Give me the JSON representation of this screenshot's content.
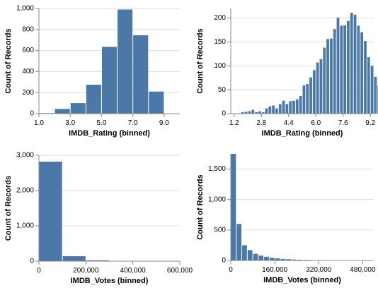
{
  "chart_data": [
    {
      "type": "bar",
      "xlabel": "IMDB_Rating (binned)",
      "ylabel": "Count of Records",
      "x_domain": [
        1,
        10
      ],
      "x_ticks": [
        1,
        3,
        5,
        7,
        9
      ],
      "x_tick_labels": [
        "1.0",
        "3.0",
        "5.0",
        "7.0",
        "9.0"
      ],
      "ylim": [
        0,
        1000
      ],
      "y_ticks": [
        0,
        200,
        400,
        600,
        800,
        1000
      ],
      "y_tick_labels": [
        "0",
        "200",
        "400",
        "600",
        "800",
        "1,000"
      ],
      "bin_starts": [
        1,
        2,
        3,
        4,
        5,
        6,
        7,
        8
      ],
      "bin_width": 1,
      "values": [
        5,
        45,
        100,
        275,
        635,
        990,
        745,
        210
      ],
      "color": "#4c78a8"
    },
    {
      "type": "bar",
      "xlabel": "IMDB_Rating (binned)",
      "ylabel": "Count of Records",
      "x_domain": [
        1,
        9.4
      ],
      "x_ticks": [
        1.2,
        2.8,
        4.4,
        6.0,
        7.6,
        9.2
      ],
      "x_tick_labels": [
        "1.2",
        "2.8",
        "4.4",
        "6.0",
        "7.6",
        "9.2"
      ],
      "ylim": [
        0,
        220
      ],
      "y_ticks": [
        0,
        50,
        100,
        150,
        200
      ],
      "y_tick_labels": [
        "0",
        "50",
        "100",
        "150",
        "200"
      ],
      "bin_start": 1.4,
      "bin_width": 0.2,
      "values": [
        1,
        3,
        4,
        5,
        8,
        3,
        5,
        3,
        11,
        15,
        17,
        11,
        20,
        27,
        20,
        26,
        27,
        30,
        37,
        59,
        62,
        76,
        91,
        107,
        114,
        138,
        156,
        157,
        177,
        201,
        184,
        185,
        194,
        211,
        207,
        184,
        170,
        152,
        118,
        100,
        77,
        59,
        34,
        37,
        20,
        14,
        5,
        3
      ],
      "color": "#4c78a8"
    },
    {
      "type": "bar",
      "xlabel": "IMDB_Votes (binned)",
      "ylabel": "Count of Records",
      "x_domain": [
        0,
        600000
      ],
      "x_ticks": [
        0,
        200000,
        400000,
        600000
      ],
      "x_tick_labels": [
        "0",
        "200,000",
        "400,000",
        "600,000"
      ],
      "ylim": [
        0,
        3000
      ],
      "y_ticks": [
        0,
        1000,
        2000,
        3000
      ],
      "y_tick_labels": [
        "0",
        "1,000",
        "2,000",
        "3,000"
      ],
      "bin_start": 0,
      "bin_width": 100000,
      "values": [
        2820,
        140,
        25,
        6,
        3,
        1
      ],
      "color": "#4c78a8"
    },
    {
      "type": "bar",
      "xlabel": "IMDB_Votes (binned)",
      "ylabel": "Count of Records",
      "x_domain": [
        0,
        520000
      ],
      "x_ticks": [
        0,
        160000,
        320000,
        480000
      ],
      "x_tick_labels": [
        "0",
        "160,000",
        "320,000",
        "480,000"
      ],
      "ylim": [
        0,
        1750
      ],
      "y_ticks": [
        0,
        500,
        1000,
        1500
      ],
      "y_tick_labels": [
        "0",
        "500",
        "1,000",
        "1,500"
      ],
      "bin_start": 0,
      "bin_width": 20000,
      "values": [
        1750,
        600,
        250,
        170,
        110,
        80,
        60,
        45,
        35,
        25,
        20,
        15,
        12,
        10,
        8,
        6,
        5,
        4,
        3,
        3,
        2,
        2,
        2,
        1,
        1,
        1
      ],
      "color": "#4c78a8"
    }
  ]
}
